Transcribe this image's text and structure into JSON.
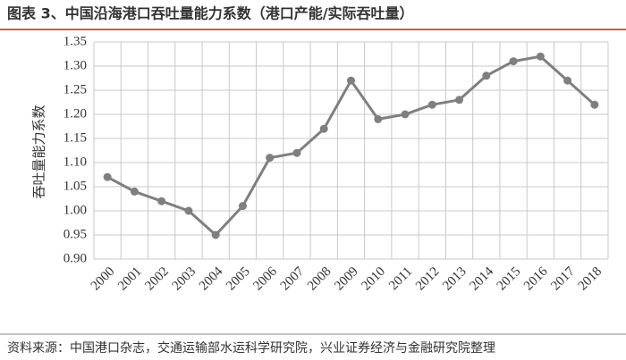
{
  "chart_data": {
    "type": "line",
    "title": "图表 3、中国沿海港口吞吐量能力系数（港口产能/实际吞吐量）",
    "y_label": "吞吐量能力系数",
    "source": "资料来源：中国港口杂志，交通运输部水运科学研究院，兴业证券经济与金融研究院整理",
    "categories": [
      "2000",
      "2001",
      "2002",
      "2003",
      "2004",
      "2005",
      "2006",
      "2007",
      "2008",
      "2009",
      "2010",
      "2011",
      "2012",
      "2013",
      "2014",
      "2015",
      "2016",
      "2017",
      "2018"
    ],
    "series": [
      {
        "name": "吞吐量能力系数",
        "color": "#7f7f7f",
        "values": [
          1.07,
          1.04,
          1.02,
          1.0,
          0.95,
          1.01,
          1.11,
          1.12,
          1.17,
          1.27,
          1.19,
          1.2,
          1.22,
          1.23,
          1.28,
          1.31,
          1.32,
          1.27,
          1.22
        ]
      }
    ],
    "ylim": [
      0.9,
      1.35
    ],
    "yticks": [
      {
        "value": 0.9,
        "label": "0.90"
      },
      {
        "value": 0.95,
        "label": "0.95"
      },
      {
        "value": 1.0,
        "label": "1.00"
      },
      {
        "value": 1.05,
        "label": "1.05"
      },
      {
        "value": 1.1,
        "label": "1.10"
      },
      {
        "value": 1.15,
        "label": "1.15"
      },
      {
        "value": 1.2,
        "label": "1.20"
      },
      {
        "value": 1.25,
        "label": "1.25"
      },
      {
        "value": 1.3,
        "label": "1.30"
      },
      {
        "value": 1.35,
        "label": "1.35"
      }
    ],
    "grid": true
  }
}
